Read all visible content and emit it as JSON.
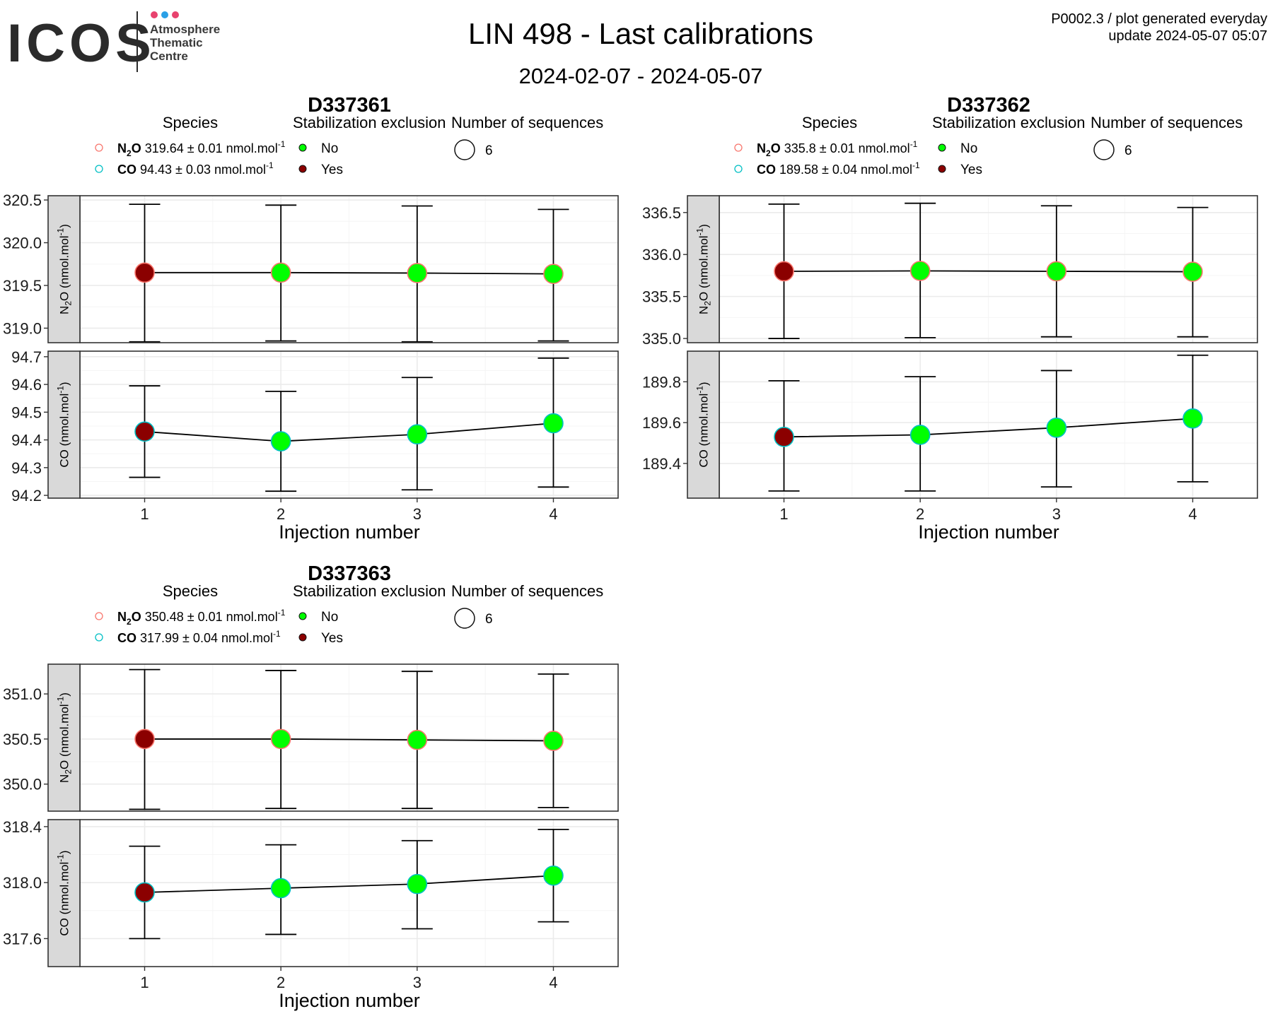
{
  "header": {
    "logo_text": "ICOS",
    "logo_subtitle": [
      "Atmosphere",
      "Thematic",
      "Centre"
    ],
    "logo_dot_colors": [
      "#e8426e",
      "#2aa0e6",
      "#e8426e"
    ],
    "title": "LIN 498 - Last calibrations",
    "date_range": "2024-02-07 - 2024-05-07",
    "meta_line1": "P0002.3 / plot generated everyday",
    "meta_line2": "update  2024-05-07 05:07"
  },
  "legend_titles": {
    "species": "Species",
    "stabilization": "Stabilization exclusion",
    "sequences": "Number of sequences"
  },
  "legend_values": {
    "stab_no": "No",
    "stab_yes": "Yes",
    "seq_count": "6"
  },
  "units": {
    "value_unit": "nmol.mol",
    "unit_exp": "-1",
    "pm": "±"
  },
  "axis": {
    "xlabel": "Injection number",
    "n2o_label_pre": "N",
    "n2o_label_sub": "2",
    "n2o_label_post": "O (nmol.mol",
    "co_label_pre": "CO (nmol.mol",
    "label_exp": "-1",
    "label_close": ")"
  },
  "colors": {
    "n2o_ring": "#f8766d",
    "co_ring": "#00bfc4",
    "fill_no": "#00ff00",
    "fill_yes": "#8b0000",
    "strip_bg": "#d9d9d9",
    "grid_major": "#ebebeb",
    "grid_minor": "#f5f5f5"
  },
  "chart_data": [
    {
      "type": "scatter",
      "title": "D337361",
      "x": [
        1,
        2,
        3,
        4
      ],
      "panels": [
        {
          "species": "N2O",
          "legend_name": "N",
          "legend_sub": "2",
          "legend_post": "O",
          "mean": "319.64",
          "sd": "0.01",
          "values": [
            319.65,
            319.65,
            319.645,
            319.635
          ],
          "err_low": [
            318.84,
            318.85,
            318.84,
            318.85
          ],
          "err_high": [
            320.45,
            320.44,
            320.43,
            320.39
          ],
          "excluded": [
            true,
            false,
            false,
            false
          ],
          "ylim": [
            318.83,
            320.55
          ],
          "ticks": [
            319.0,
            319.5,
            320.0,
            320.5
          ],
          "tick_labels": [
            "319.0",
            "319.5",
            "320.0",
            "320.5"
          ]
        },
        {
          "species": "CO",
          "legend_name": "CO",
          "legend_sub": "",
          "legend_post": "",
          "mean": "94.43",
          "sd": "0.03",
          "values": [
            94.43,
            94.395,
            94.42,
            94.46
          ],
          "err_low": [
            94.265,
            94.215,
            94.22,
            94.23
          ],
          "err_high": [
            94.595,
            94.575,
            94.625,
            94.695
          ],
          "excluded": [
            true,
            false,
            false,
            false
          ],
          "ylim": [
            94.19,
            94.72
          ],
          "ticks": [
            94.2,
            94.3,
            94.4,
            94.5,
            94.6,
            94.7
          ],
          "tick_labels": [
            "94.2",
            "94.3",
            "94.4",
            "94.5",
            "94.6",
            "94.7"
          ]
        }
      ]
    },
    {
      "type": "scatter",
      "title": "D337362",
      "x": [
        1,
        2,
        3,
        4
      ],
      "panels": [
        {
          "species": "N2O",
          "legend_name": "N",
          "legend_sub": "2",
          "legend_post": "O",
          "mean": "335.8",
          "sd": "0.01",
          "values": [
            335.8,
            335.805,
            335.8,
            335.795
          ],
          "err_low": [
            335.0,
            335.01,
            335.02,
            335.02
          ],
          "err_high": [
            336.6,
            336.61,
            336.58,
            336.56
          ],
          "excluded": [
            true,
            false,
            false,
            false
          ],
          "ylim": [
            334.95,
            336.7
          ],
          "ticks": [
            335.0,
            335.5,
            336.0,
            336.5
          ],
          "tick_labels": [
            "335.0",
            "335.5",
            "336.0",
            "336.5"
          ]
        },
        {
          "species": "CO",
          "legend_name": "CO",
          "legend_sub": "",
          "legend_post": "",
          "mean": "189.58",
          "sd": "0.04",
          "values": [
            189.53,
            189.54,
            189.575,
            189.62
          ],
          "err_low": [
            189.265,
            189.265,
            189.285,
            189.31
          ],
          "err_high": [
            189.805,
            189.825,
            189.855,
            189.93
          ],
          "excluded": [
            true,
            false,
            false,
            false
          ],
          "ylim": [
            189.23,
            189.95
          ],
          "ticks": [
            189.4,
            189.6,
            189.8
          ],
          "tick_labels": [
            "189.4",
            "189.6",
            "189.8"
          ]
        }
      ]
    },
    {
      "type": "scatter",
      "title": "D337363",
      "x": [
        1,
        2,
        3,
        4
      ],
      "panels": [
        {
          "species": "N2O",
          "legend_name": "N",
          "legend_sub": "2",
          "legend_post": "O",
          "mean": "350.48",
          "sd": "0.01",
          "values": [
            350.5,
            350.5,
            350.49,
            350.48
          ],
          "err_low": [
            349.72,
            349.73,
            349.73,
            349.74
          ],
          "err_high": [
            351.27,
            351.26,
            351.25,
            351.22
          ],
          "excluded": [
            true,
            false,
            false,
            false
          ],
          "ylim": [
            349.7,
            351.33
          ],
          "ticks": [
            350.0,
            350.5,
            351.0
          ],
          "tick_labels": [
            "350.0",
            "350.5",
            "351.0"
          ]
        },
        {
          "species": "CO",
          "legend_name": "CO",
          "legend_sub": "",
          "legend_post": "",
          "mean": "317.99",
          "sd": "0.04",
          "values": [
            317.93,
            317.96,
            317.99,
            318.05
          ],
          "err_low": [
            317.6,
            317.63,
            317.67,
            317.72
          ],
          "err_high": [
            318.26,
            318.27,
            318.3,
            318.38
          ],
          "excluded": [
            true,
            false,
            false,
            false
          ],
          "ylim": [
            317.4,
            318.45
          ],
          "ticks": [
            317.6,
            318.0,
            318.4
          ],
          "tick_labels": [
            "317.6",
            "318.0",
            "318.4"
          ]
        }
      ]
    }
  ]
}
